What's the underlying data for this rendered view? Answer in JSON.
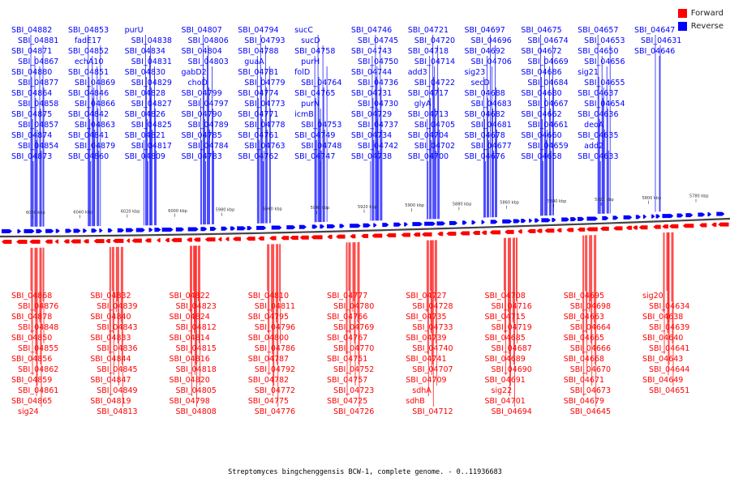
{
  "legend": {
    "forward_label": "Forward",
    "reverse_label": "Reverse",
    "forward_color": "#ff0000",
    "reverse_color": "#0000ff"
  },
  "caption": "Streptomyces bingchenggensis BCW-1, complete genome. - 0..11936683",
  "ruler": {
    "ticks": [
      "6060 kbp",
      "6040 kbp",
      "6020 kbp",
      "6000 kbp",
      "5980 kbp",
      "5960 kbp",
      "5940 kbp",
      "5920 kbp",
      "5900 kbp",
      "5880 kbp",
      "5860 kbp",
      "5840 kbp",
      "5820 kbp",
      "5800 kbp",
      "5780 kbp"
    ]
  },
  "reverse_genes": [
    "SBI_04882",
    "SBI_04881",
    "SBI_04871",
    "SBI_04867",
    "SBI_04880",
    "SBI_04877",
    "SBI_04864",
    "SBI_04858",
    "SBI_04875",
    "SBI_04857",
    "SBI_04874",
    "SBI_04854",
    "SBI_04873",
    "SBI_04853",
    "fadE17",
    "SBI_04852",
    "echA10",
    "SBI_04851",
    "SBI_04869",
    "SBI_04846",
    "SBI_04866",
    "SBI_04842",
    "SBI_04863",
    "SBI_04841",
    "SBI_04879",
    "SBI_04860",
    "purU",
    "SBI_04838",
    "SBI_04834",
    "SBI_04831",
    "SBI_04830",
    "SBI_04829",
    "SBI_04828",
    "SBI_04827",
    "SBI_04826",
    "SBI_04825",
    "SBI_04821",
    "SBI_04817",
    "SBI_04809",
    "SBI_04807",
    "SBI_04806",
    "SBI_04804",
    "SBI_04803",
    "gabD2",
    "choD",
    "SBI_04799",
    "SBI_04797",
    "SBI_04790",
    "SBI_04789",
    "SBI_04785",
    "SBI_04784",
    "SBI_04783",
    "SBI_04794",
    "SBI_04793",
    "SBI_04788",
    "guaA",
    "SBI_04781",
    "SBI_04779",
    "SBI_04774",
    "SBI_04773",
    "SBI_04771",
    "SBI_04778",
    "SBI_04761",
    "SBI_04763",
    "SBI_04762",
    "sucC",
    "sucD",
    "SBI_04758",
    "purH",
    "folD",
    "SBI_04764",
    "SBI_04765",
    "purN",
    "icmB",
    "SBI_04753",
    "SBI_04749",
    "SBI_04748",
    "SBI_04747",
    "SBI_04746",
    "SBI_04745",
    "SBI_04743",
    "SBI_04750",
    "SBI_04744",
    "SBI_04736",
    "SBI_04731",
    "SBI_04730",
    "SBI_04729",
    "SBI_04737",
    "SBI_04734",
    "SBI_04742",
    "SBI_04738",
    "SBI_04721",
    "SBI_04720",
    "SBI_04718",
    "SBI_04714",
    "add3",
    "SBI_04722",
    "SBI_04717",
    "glyA",
    "SBI_04713",
    "SBI_04705",
    "SBI_04704",
    "SBI_04702",
    "SBI_04700",
    "SBI_04697",
    "SBI_04696",
    "SBI_04692",
    "SBI_04706",
    "sig23",
    "secD",
    "SBI_04688",
    "SBI_04683",
    "SBI_04682",
    "SBI_04681",
    "SBI_04678",
    "SBI_04677",
    "SBI_04676",
    "SBI_04675",
    "SBI_04674",
    "SBI_04672",
    "SBI_04669",
    "SBI_04686",
    "SBI_04684",
    "SBI_04680",
    "SBI_04667",
    "SBI_04662",
    "SBI_04661",
    "SBI_04660",
    "SBI_04659",
    "SBI_04658",
    "SBI_04657",
    "SBI_04653",
    "SBI_04650",
    "SBI_04656",
    "sig21",
    "SBI_04655",
    "SBI_04637",
    "SBI_04654",
    "SBI_04636",
    "deoA",
    "SBI_04635",
    "add2",
    "SBI_04633",
    "SBI_04647",
    "SBI_04631",
    "SBI_04646"
  ],
  "forward_genes": [
    "SBI_04868",
    "SBI_04876",
    "SBI_04878",
    "SBI_04848",
    "SBI_04850",
    "SBI_04855",
    "SBI_04856",
    "SBI_04862",
    "SBI_04859",
    "SBI_04861",
    "SBI_04865",
    "sig24",
    "SBI_04832",
    "SBI_04839",
    "SBI_04840",
    "SBI_04843",
    "SBI_04833",
    "SBI_04836",
    "SBI_04844",
    "SBI_04845",
    "SBI_04847",
    "SBI_04849",
    "SBI_04819",
    "SBI_04813",
    "SBI_04822",
    "SBI_04823",
    "SBI_04824",
    "SBI_04812",
    "SBI_04814",
    "SBI_04815",
    "SBI_04816",
    "SBI_04818",
    "SBI_04820",
    "SBI_04805",
    "SBI_04798",
    "SBI_04808",
    "SBI_04810",
    "SBI_04811",
    "SBI_04795",
    "SBI_04796",
    "SBI_04800",
    "SBI_04786",
    "SBI_04787",
    "SBI_04792",
    "SBI_04782",
    "SBI_04772",
    "SBI_04775",
    "SBI_04776",
    "SBI_04777",
    "SBI_04780",
    "SBI_04766",
    "SBI_04769",
    "SBI_04767",
    "SBI_04770",
    "SBI_04751",
    "SBI_04752",
    "SBI_04757",
    "SBI_04723",
    "SBI_04725",
    "SBI_04726",
    "SBI_04727",
    "SBI_04728",
    "SBI_04735",
    "SBI_04733",
    "SBI_04739",
    "SBI_04740",
    "SBI_04741",
    "SBI_04707",
    "SBI_04709",
    "sdhA",
    "sdhB",
    "SBI_04712",
    "SBI_04708",
    "SBI_04716",
    "SBI_04715",
    "SBI_04719",
    "SBI_04685",
    "SBI_04687",
    "SBI_04689",
    "SBI_04690",
    "SBI_04691",
    "sig22",
    "SBI_04701",
    "SBI_04694",
    "SBI_04695",
    "SBI_04698",
    "SBI_04663",
    "SBI_04664",
    "SBI_04665",
    "SBI_04666",
    "SBI_04668",
    "SBI_04670",
    "SBI_04671",
    "SBI_04673",
    "SBI_04679",
    "SBI_04645",
    "sig20",
    "SBI_04634",
    "SBI_04638",
    "SBI_04639",
    "SBI_04640",
    "SBI_04641",
    "SBI_04643",
    "SBI_04644",
    "SBI_04649",
    "SBI_04651"
  ]
}
